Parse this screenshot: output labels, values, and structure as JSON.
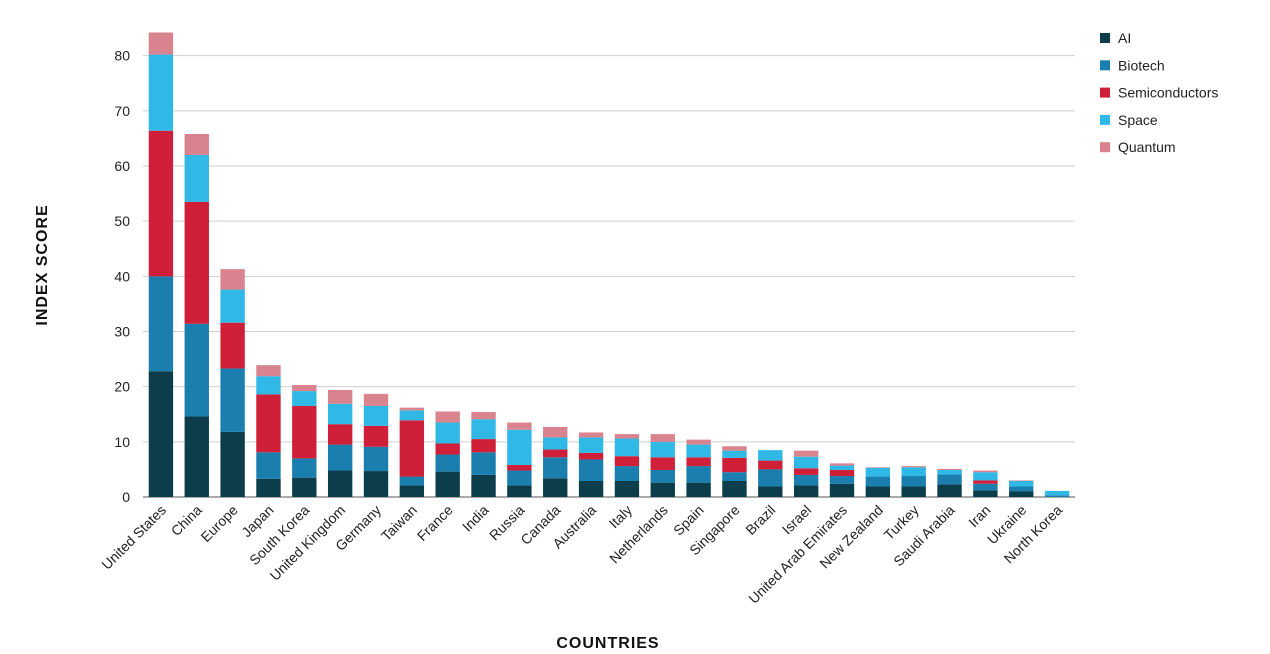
{
  "chart_data": {
    "type": "bar",
    "stacked": true,
    "xlabel": "COUNTRIES",
    "ylabel": "INDEX SCORE",
    "ylim": [
      0,
      84
    ],
    "yticks": [
      0,
      10,
      20,
      30,
      40,
      50,
      60,
      70,
      80
    ],
    "grid": true,
    "legend_position": "top-right",
    "categories": [
      "United States",
      "China",
      "Europe",
      "Japan",
      "South Korea",
      "United Kingdom",
      "Germany",
      "Taiwan",
      "France",
      "India",
      "Russia",
      "Canada",
      "Australia",
      "Italy",
      "Netherlands",
      "Spain",
      "Singapore",
      "Brazil",
      "Israel",
      "United Arab Emirates",
      "New Zealand",
      "Turkey",
      "Saudi Arabia",
      "Iran",
      "Ukraine",
      "North Korea"
    ],
    "series": [
      {
        "name": "AI",
        "color": "#0b3d4a",
        "values": [
          22.8,
          14.6,
          11.8,
          3.3,
          3.5,
          4.8,
          4.7,
          2.1,
          4.6,
          4.0,
          2.1,
          3.4,
          2.9,
          2.9,
          2.6,
          2.6,
          2.9,
          1.9,
          2.1,
          2.4,
          1.9,
          1.9,
          2.3,
          1.2,
          1.0,
          0.0
        ]
      },
      {
        "name": "Biotech",
        "color": "#1a7fae",
        "values": [
          17.2,
          16.8,
          11.5,
          4.8,
          3.5,
          4.7,
          4.4,
          1.6,
          3.1,
          4.1,
          2.7,
          3.8,
          3.9,
          2.7,
          2.3,
          3.0,
          1.6,
          3.1,
          1.9,
          1.4,
          1.8,
          1.9,
          1.8,
          1.2,
          0.9,
          0.3
        ]
      },
      {
        "name": "Semiconductors",
        "color": "#d01f39",
        "values": [
          26.4,
          22.1,
          8.3,
          10.5,
          9.5,
          3.7,
          3.8,
          10.2,
          2.0,
          2.4,
          1.0,
          1.4,
          1.2,
          1.8,
          2.3,
          1.6,
          2.6,
          1.6,
          1.2,
          1.1,
          0.0,
          0.0,
          0.0,
          0.6,
          0.0,
          0.0
        ]
      },
      {
        "name": "Space",
        "color": "#30b8e6",
        "values": [
          13.8,
          8.5,
          6.0,
          3.3,
          2.7,
          3.7,
          3.6,
          1.8,
          3.8,
          3.6,
          6.4,
          2.2,
          2.8,
          3.2,
          2.8,
          2.3,
          1.3,
          1.9,
          2.1,
          0.8,
          1.6,
          1.6,
          0.8,
          1.5,
          1.0,
          0.8
        ]
      },
      {
        "name": "Quantum",
        "color": "#d9838e",
        "values": [
          4.0,
          3.8,
          3.7,
          2.0,
          1.1,
          2.5,
          2.2,
          0.5,
          2.0,
          1.3,
          1.3,
          1.9,
          0.9,
          0.8,
          1.4,
          0.9,
          0.8,
          0.0,
          1.1,
          0.4,
          0.1,
          0.2,
          0.2,
          0.3,
          0.1,
          0.0
        ]
      }
    ]
  }
}
